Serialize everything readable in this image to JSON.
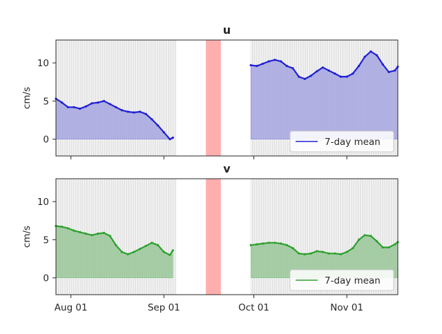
{
  "chart_data": [
    {
      "type": "area",
      "title": "u",
      "ylabel": "cm/s",
      "xlabel": "",
      "ylim": [
        -2.2,
        13
      ],
      "xlim": [
        "2023-07-27",
        "2023-11-18"
      ],
      "yticks": [
        0,
        5,
        10
      ],
      "xticks": [
        "2023-08-01",
        "2023-09-01",
        "2023-10-01",
        "2023-11-01"
      ],
      "xtick_labels": [
        "Aug 01",
        "Sep 01",
        "Oct 01",
        "Nov 01"
      ],
      "show_xtick_labels": false,
      "background_series": {
        "name": "hourly",
        "color": "#bfbfbf",
        "range": [
          -2.2,
          13
        ]
      },
      "highlight_span": {
        "start": "2023-09-15",
        "end": "2023-09-20",
        "color": "#ff9a9a"
      },
      "series": [
        {
          "name": "7-day mean",
          "color": "#1f1fd6",
          "fill_color": "#9d9de0",
          "x": [
            "2023-07-27",
            "2023-07-29",
            "2023-07-31",
            "2023-08-02",
            "2023-08-04",
            "2023-08-06",
            "2023-08-08",
            "2023-08-10",
            "2023-08-12",
            "2023-08-14",
            "2023-08-16",
            "2023-08-18",
            "2023-08-20",
            "2023-08-22",
            "2023-08-24",
            "2023-08-26",
            "2023-08-28",
            "2023-08-30",
            "2023-09-01",
            "2023-09-03",
            "2023-09-04"
          ],
          "y": [
            5.3,
            4.8,
            4.2,
            4.2,
            4.0,
            4.3,
            4.7,
            4.8,
            5.0,
            4.6,
            4.2,
            3.8,
            3.6,
            3.5,
            3.6,
            3.3,
            2.6,
            1.8,
            0.9,
            0.0,
            0.2
          ],
          "segment2_x": [
            "2023-09-30",
            "2023-10-02",
            "2023-10-04",
            "2023-10-06",
            "2023-10-08",
            "2023-10-10",
            "2023-10-12",
            "2023-10-14",
            "2023-10-16",
            "2023-10-18",
            "2023-10-20",
            "2023-10-22",
            "2023-10-24",
            "2023-10-26",
            "2023-10-28",
            "2023-10-30",
            "2023-11-01",
            "2023-11-03",
            "2023-11-05",
            "2023-11-07",
            "2023-11-09",
            "2023-11-11",
            "2023-11-13",
            "2023-11-15",
            "2023-11-17",
            "2023-11-18"
          ],
          "segment2_y": [
            9.7,
            9.6,
            9.9,
            10.2,
            10.4,
            10.2,
            9.6,
            9.3,
            8.2,
            7.9,
            8.3,
            8.9,
            9.4,
            9.0,
            8.6,
            8.2,
            8.2,
            8.6,
            9.6,
            10.8,
            11.5,
            11.0,
            9.8,
            8.8,
            9.0,
            9.5
          ]
        }
      ],
      "legend": {
        "label": "7-day mean",
        "placement": "lower-right"
      }
    },
    {
      "type": "area",
      "title": "v",
      "ylabel": "cm/s",
      "xlabel": "",
      "ylim": [
        -2.2,
        13
      ],
      "xlim": [
        "2023-07-27",
        "2023-11-18"
      ],
      "yticks": [
        0,
        5,
        10
      ],
      "xticks": [
        "2023-08-01",
        "2023-09-01",
        "2023-10-01",
        "2023-11-01"
      ],
      "xtick_labels": [
        "Aug 01",
        "Sep 01",
        "Oct 01",
        "Nov 01"
      ],
      "show_xtick_labels": true,
      "background_series": {
        "name": "hourly",
        "color": "#bfbfbf",
        "range": [
          -2.2,
          13
        ]
      },
      "highlight_span": {
        "start": "2023-09-15",
        "end": "2023-09-20",
        "color": "#ff9a9a"
      },
      "series": [
        {
          "name": "7-day mean",
          "color": "#2ca02c",
          "fill_color": "#8fc28f",
          "x": [
            "2023-07-27",
            "2023-07-29",
            "2023-07-31",
            "2023-08-02",
            "2023-08-04",
            "2023-08-06",
            "2023-08-08",
            "2023-08-10",
            "2023-08-12",
            "2023-08-14",
            "2023-08-16",
            "2023-08-18",
            "2023-08-20",
            "2023-08-22",
            "2023-08-24",
            "2023-08-26",
            "2023-08-28",
            "2023-08-30",
            "2023-09-01",
            "2023-09-03",
            "2023-09-04"
          ],
          "y": [
            6.8,
            6.7,
            6.5,
            6.2,
            6.0,
            5.8,
            5.6,
            5.8,
            5.9,
            5.5,
            4.3,
            3.4,
            3.1,
            3.4,
            3.8,
            4.2,
            4.6,
            4.3,
            3.4,
            3.0,
            3.6
          ],
          "segment2_x": [
            "2023-09-30",
            "2023-10-02",
            "2023-10-04",
            "2023-10-06",
            "2023-10-08",
            "2023-10-10",
            "2023-10-12",
            "2023-10-14",
            "2023-10-16",
            "2023-10-18",
            "2023-10-20",
            "2023-10-22",
            "2023-10-24",
            "2023-10-26",
            "2023-10-28",
            "2023-10-30",
            "2023-11-01",
            "2023-11-03",
            "2023-11-05",
            "2023-11-07",
            "2023-11-09",
            "2023-11-11",
            "2023-11-13",
            "2023-11-15",
            "2023-11-17",
            "2023-11-18"
          ],
          "segment2_y": [
            4.3,
            4.4,
            4.5,
            4.6,
            4.6,
            4.5,
            4.3,
            3.9,
            3.2,
            3.1,
            3.2,
            3.5,
            3.4,
            3.2,
            3.2,
            3.1,
            3.4,
            3.9,
            5.0,
            5.6,
            5.5,
            4.8,
            4.0,
            4.0,
            4.4,
            4.7
          ]
        }
      ],
      "legend": {
        "label": "7-day mean",
        "placement": "lower-right"
      }
    }
  ]
}
